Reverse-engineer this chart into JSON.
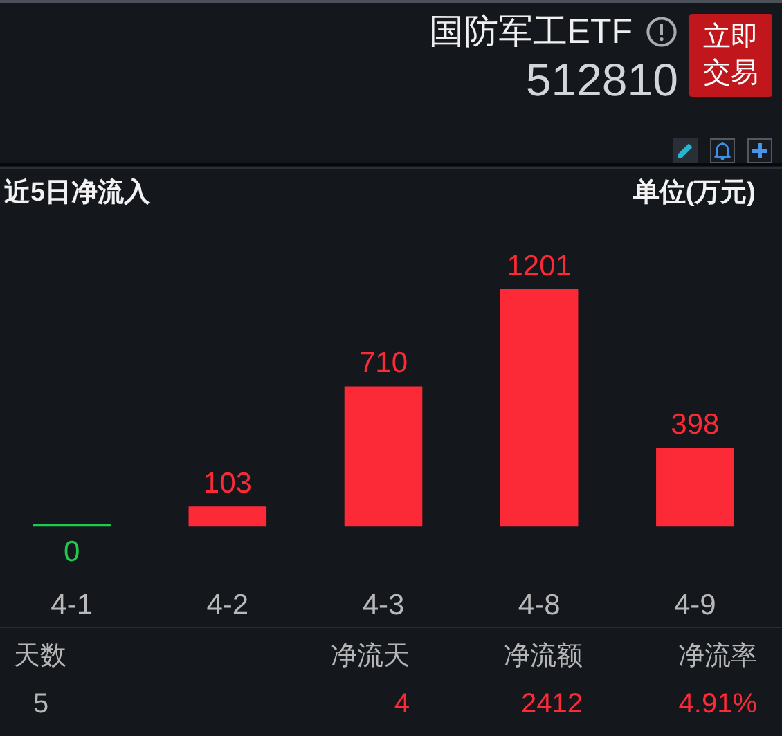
{
  "chart_data": {
    "type": "bar",
    "title": "近5日净流入",
    "ylabel": "单位(万元)",
    "categories": [
      "4-1",
      "4-2",
      "4-3",
      "4-8",
      "4-9"
    ],
    "values": [
      0,
      103,
      710,
      1201,
      398
    ],
    "colors": [
      "#22c94f",
      "#fc2a37",
      "#fc2a37",
      "#fc2a37",
      "#fc2a37"
    ],
    "data_labels": true,
    "grid": false,
    "legend": false,
    "annotations": [
      "国防军工ETF",
      "512810",
      "立即交易",
      "天数",
      "5",
      "净流天",
      "4",
      "净流额",
      "2412",
      "净流率",
      "4.91%"
    ]
  }
}
